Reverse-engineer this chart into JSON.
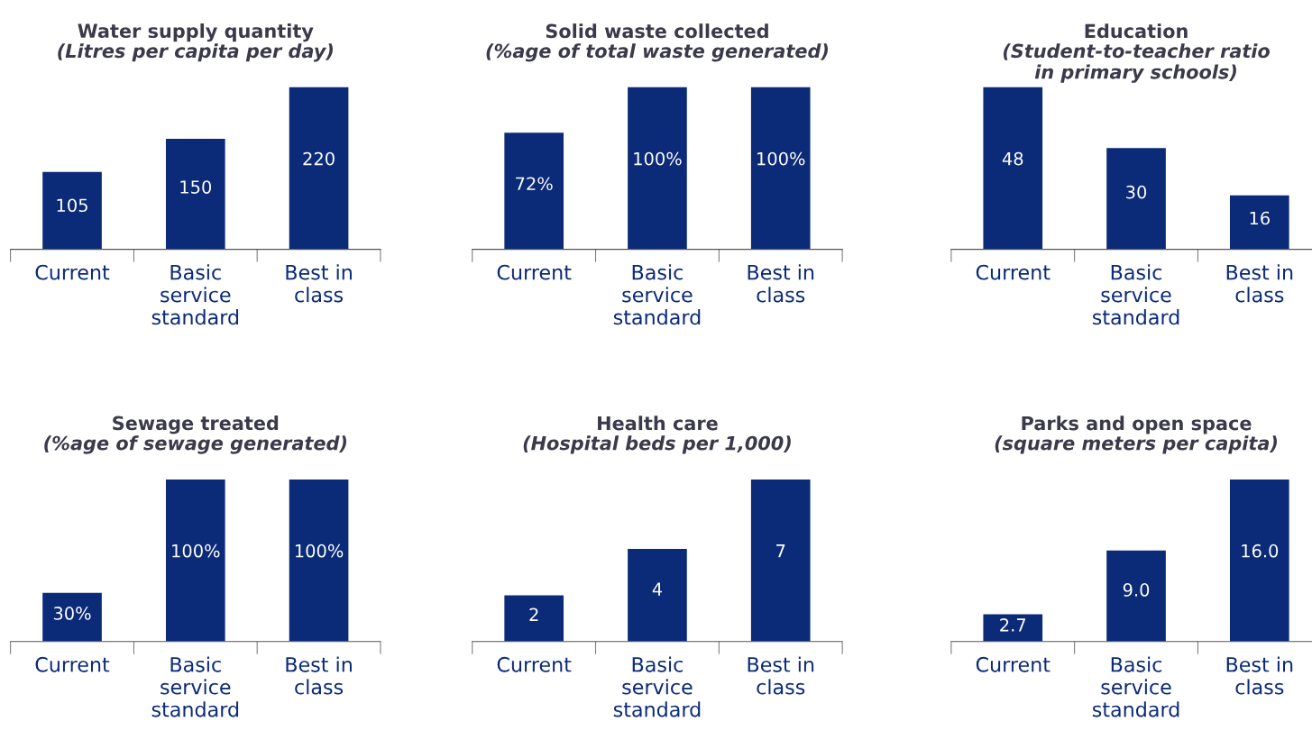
{
  "chart_data": [
    {
      "type": "bar",
      "title": "Water supply quantity",
      "subtitle": "(Litres per capita per day)",
      "categories": [
        "Current",
        "Basic\nservice\nstandard",
        "Best in\nclass"
      ],
      "values": [
        105,
        150,
        220
      ],
      "value_labels": [
        "105",
        "150",
        "220"
      ],
      "color": "#0b2a78"
    },
    {
      "type": "bar",
      "title": "Solid waste collected",
      "subtitle": "(%age of total waste generated)",
      "categories": [
        "Current",
        "Basic\nservice\nstandard",
        "Best in\nclass"
      ],
      "values": [
        72,
        100,
        100
      ],
      "value_labels": [
        "72%",
        "100%",
        "100%"
      ],
      "color": "#0b2a78"
    },
    {
      "type": "bar",
      "title": "Education",
      "subtitle": "(Student-to-teacher ratio\nin primary schools)",
      "categories": [
        "Current",
        "Basic\nservice\nstandard",
        "Best in\nclass"
      ],
      "values": [
        48,
        30,
        16
      ],
      "value_labels": [
        "48",
        "30",
        "16"
      ],
      "color": "#0b2a78"
    },
    {
      "type": "bar",
      "title": "Sewage treated",
      "subtitle": "(%age of sewage generated)",
      "categories": [
        "Current",
        "Basic\nservice\nstandard",
        "Best in\nclass"
      ],
      "values": [
        30,
        100,
        100
      ],
      "value_labels": [
        "30%",
        "100%",
        "100%"
      ],
      "color": "#0b2a78"
    },
    {
      "type": "bar",
      "title": "Health care",
      "subtitle": "(Hospital beds per 1,000)",
      "categories": [
        "Current",
        "Basic\nservice\nstandard",
        "Best in\nclass"
      ],
      "values": [
        2,
        4,
        7
      ],
      "value_labels": [
        "2",
        "4",
        "7"
      ],
      "color": "#0b2a78"
    },
    {
      "type": "bar",
      "title": "Parks and open space",
      "subtitle": "(square meters per capita)",
      "categories": [
        "Current",
        "Basic\nservice\nstandard",
        "Best in\nclass"
      ],
      "values": [
        2.7,
        9.0,
        16.0
      ],
      "value_labels": [
        "2.7",
        "9.0",
        "16.0"
      ],
      "color": "#0b2a78"
    }
  ]
}
